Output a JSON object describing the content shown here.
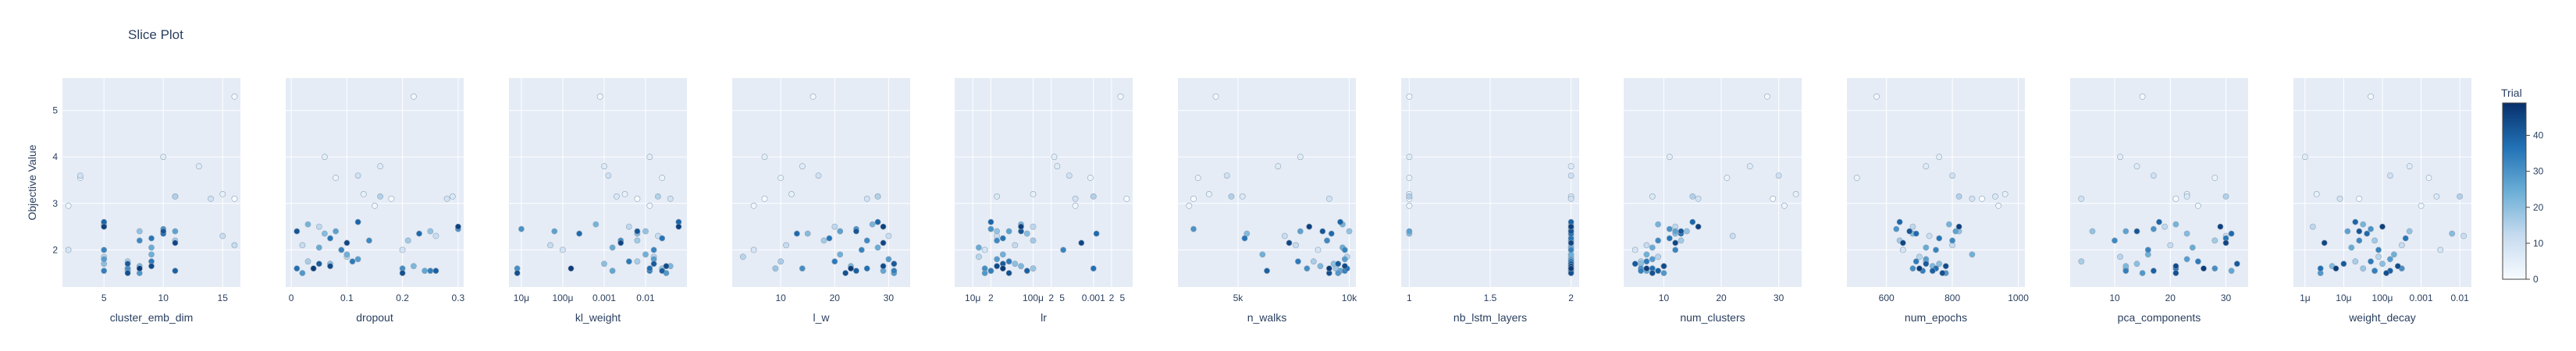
{
  "chart_data": {
    "type": "scatter",
    "title": "Slice Plot",
    "ylabel": "Objective Value",
    "ylim": [
      1.2,
      5.7
    ],
    "y_ticks": [
      2,
      3,
      4,
      5
    ],
    "grid": true,
    "colorbar": {
      "title": "Trial",
      "range": [
        0,
        49
      ],
      "ticks": [
        0,
        10,
        20,
        30,
        40
      ],
      "colors": [
        "#f7fbff",
        "#c6dbef",
        "#6baed6",
        "#2171b5",
        "#08306b"
      ]
    },
    "objective_by_trial": [
      3.1,
      5.3,
      2.95,
      3.55,
      3.2,
      4.0,
      3.8,
      3.15,
      2.0,
      3.1,
      3.6,
      2.3,
      2.1,
      2.5,
      1.85,
      3.15,
      1.75,
      2.2,
      1.6,
      2.4,
      1.7,
      2.35,
      1.65,
      2.55,
      1.9,
      2.05,
      1.55,
      2.4,
      1.8,
      1.5,
      2.45,
      1.6,
      2.2,
      2.0,
      1.55,
      1.75,
      2.25,
      1.6,
      2.35,
      2.6,
      1.55,
      1.7,
      2.4,
      1.5,
      1.65,
      2.15,
      2.5,
      1.6
    ],
    "panels": [
      {
        "param": "cluster_emb_dim",
        "xlabel": "cluster_emb_dim",
        "scale": "linear",
        "range": [
          1.5,
          16.5
        ],
        "tick_values": [
          5,
          10,
          15
        ],
        "tick_labels": [
          "5",
          "10",
          "15"
        ],
        "x": [
          16,
          16,
          2,
          3,
          15,
          10,
          13,
          11,
          2,
          14,
          3,
          15,
          16,
          5,
          5,
          11,
          7,
          11,
          7,
          8,
          5,
          10,
          8,
          5,
          9,
          9,
          7,
          11,
          5,
          8,
          10,
          7,
          8,
          5,
          5,
          9,
          9,
          8,
          10,
          5,
          11,
          7,
          10,
          7,
          9,
          11,
          5,
          8
        ]
      },
      {
        "param": "dropout",
        "xlabel": "dropout",
        "scale": "linear",
        "range": [
          -0.01,
          0.31
        ],
        "tick_values": [
          0,
          0.1,
          0.2,
          0.3
        ],
        "tick_labels": [
          "0",
          "0.1",
          "0.2",
          "0.3"
        ],
        "x": [
          0.18,
          0.22,
          0.15,
          0.08,
          0.13,
          0.06,
          0.16,
          0.29,
          0.2,
          0.28,
          0.12,
          0.26,
          0.02,
          0.05,
          0.1,
          0.16,
          0.03,
          0.21,
          0.04,
          0.25,
          0.07,
          0.06,
          0.22,
          0.03,
          0.1,
          0.05,
          0.24,
          0.08,
          0.12,
          0.02,
          0.3,
          0.2,
          0.14,
          0.09,
          0.25,
          0.11,
          0.07,
          0.01,
          0.23,
          0.12,
          0.26,
          0.05,
          0.01,
          0.2,
          0.07,
          0.1,
          0.3,
          0.04
        ]
      },
      {
        "param": "kl_weight",
        "xlabel": "kl_weight",
        "scale": "log",
        "range": [
          -5.3,
          -1.0
        ],
        "tick_values": [
          -5,
          -4,
          -3,
          -2
        ],
        "tick_labels": [
          "10μ",
          "100μ",
          "0.001",
          "0.01"
        ],
        "x": [
          -2.2,
          -3.1,
          -1.9,
          -1.6,
          -2.5,
          -1.9,
          -3.0,
          -2.7,
          -4.0,
          -1.4,
          -2.9,
          -1.7,
          -4.3,
          -2.4,
          -1.8,
          -1.7,
          -2.2,
          -2.2,
          -1.6,
          -2.0,
          -3.0,
          -2.2,
          -1.4,
          -3.2,
          -2.0,
          -2.8,
          -2.8,
          -4.2,
          -1.8,
          -1.5,
          -5.0,
          -5.1,
          -2.6,
          -1.8,
          -1.9,
          -2.4,
          -1.6,
          -1.9,
          -3.6,
          -1.2,
          -1.6,
          -1.8,
          -2.2,
          -5.1,
          -1.5,
          -2.6,
          -1.2,
          -3.8
        ]
      },
      {
        "param": "l_w",
        "xlabel": "l_w",
        "scale": "linear",
        "range": [
          1,
          34
        ],
        "tick_values": [
          10,
          20,
          30
        ],
        "tick_labels": [
          "10",
          "20",
          "30"
        ],
        "x": [
          7,
          16,
          5,
          10,
          12,
          7,
          14,
          28,
          5,
          26,
          17,
          30,
          11,
          20,
          3,
          28,
          10,
          18,
          9,
          21,
          31,
          15,
          23,
          27,
          21,
          28,
          29,
          21,
          30,
          31,
          24,
          14,
          26,
          25,
          31,
          20,
          19,
          26,
          13,
          28,
          24,
          31,
          24,
          22,
          29,
          29,
          29,
          23
        ]
      },
      {
        "param": "lr",
        "xlabel": "lr",
        "scale": "log",
        "range": [
          -5.3,
          -2.35
        ],
        "tick_values": [
          -5,
          -4.7,
          -4,
          -3.7,
          -3,
          -2.7
        ],
        "tick_labels": [
          "10μ",
          "2",
          "100μ",
          "2",
          "0.001",
          "2"
        ],
        "minor_tick_values": [
          -3.52,
          -2.52
        ],
        "minor_tick_labels": [
          "5",
          "5"
        ],
        "x": [
          -2.45,
          -2.55,
          -3.3,
          -3.05,
          -4.0,
          -3.65,
          -3.6,
          -4.6,
          -4.8,
          -3.3,
          -3.4,
          -4.6,
          -4.3,
          -4.0,
          -4.9,
          -3.0,
          -4.4,
          -4.0,
          -4.0,
          -4.6,
          -4.3,
          -4.1,
          -4.2,
          -4.2,
          -4.5,
          -4.9,
          -4.7,
          -4.4,
          -4.6,
          -4.8,
          -4.7,
          -4.8,
          -4.6,
          -3.5,
          -4.7,
          -4.4,
          -4.5,
          -3.0,
          -2.95,
          -4.7,
          -4.1,
          -4.5,
          -4.2,
          -4.4,
          -4.6,
          -3.2,
          -4.2,
          -4.5
        ]
      },
      {
        "param": "n_walks",
        "xlabel": "n_walks",
        "scale": "linear",
        "range": [
          2300,
          10300
        ],
        "tick_values": [
          5000,
          10000
        ],
        "tick_labels": [
          "5k",
          "10k"
        ],
        "x": [
          3000,
          4000,
          2800,
          3200,
          3700,
          7800,
          6800,
          5200,
          8600,
          9100,
          4500,
          7100,
          7600,
          8200,
          9900,
          4700,
          8400,
          9000,
          9400,
          10000,
          9300,
          5400,
          8700,
          9700,
          6100,
          9700,
          9600,
          7800,
          9800,
          9500,
          3000,
          8100,
          9000,
          9800,
          9800,
          7700,
          5300,
          9900,
          9200,
          9600,
          6300,
          9500,
          8800,
          9100,
          9800,
          7300,
          8200,
          9100
        ]
      },
      {
        "param": "nb_lstm_layers",
        "xlabel": "nb_lstm_layers",
        "scale": "linear",
        "range": [
          0.95,
          2.05
        ],
        "tick_values": [
          1,
          1.5,
          2
        ],
        "tick_labels": [
          "1",
          "1.5",
          "2"
        ],
        "x": [
          1,
          1,
          1,
          1,
          1,
          1,
          2,
          2,
          2,
          2,
          2,
          2,
          2,
          2,
          2,
          1,
          2,
          2,
          2,
          2,
          2,
          1,
          2,
          2,
          2,
          2,
          2,
          1,
          2,
          2,
          2,
          2,
          2,
          2,
          2,
          2,
          2,
          2,
          2,
          2,
          2,
          2,
          2,
          2,
          2,
          2,
          2,
          2
        ]
      },
      {
        "param": "num_clusters",
        "xlabel": "num_clusters",
        "scale": "linear",
        "range": [
          3,
          34
        ],
        "tick_values": [
          10,
          20,
          30
        ],
        "tick_labels": [
          "10",
          "20",
          "30"
        ],
        "x": [
          29,
          28,
          31,
          21,
          33,
          11,
          25,
          8,
          5,
          16,
          30,
          22,
          7,
          12,
          9,
          15,
          6,
          13,
          8,
          14,
          6,
          12,
          10,
          9,
          7,
          8,
          7,
          12,
          8,
          10,
          11,
          6,
          9,
          12,
          6,
          7,
          11,
          8,
          13,
          15,
          9,
          5,
          13,
          8,
          10,
          12,
          16,
          7
        ]
      },
      {
        "param": "num_epochs",
        "xlabel": "num_epochs",
        "scale": "linear",
        "range": [
          480,
          1020
        ],
        "tick_values": [
          600,
          800,
          1000
        ],
        "tick_labels": [
          "600",
          "800",
          "1000"
        ],
        "x": [
          890,
          570,
          940,
          510,
          960,
          760,
          720,
          930,
          650,
          860,
          800,
          730,
          800,
          680,
          700,
          820,
          720,
          640,
          750,
          820,
          760,
          680,
          740,
          790,
          860,
          720,
          740,
          810,
          720,
          780,
          630,
          680,
          800,
          750,
          710,
          690,
          760,
          750,
          690,
          640,
          740,
          720,
          670,
          770,
          780,
          650,
          820,
          700
        ]
      },
      {
        "param": "pca_components",
        "xlabel": "pca_components",
        "scale": "linear",
        "range": [
          2,
          34
        ],
        "tick_values": [
          10,
          20,
          30
        ],
        "tick_labels": [
          "10",
          "20",
          "30"
        ],
        "x": [
          21,
          15,
          25,
          28,
          23,
          11,
          14,
          23,
          16,
          4,
          17,
          30,
          20,
          19,
          11,
          30,
          4,
          28,
          12,
          6,
          14,
          23,
          12,
          21,
          16,
          24,
          31,
          12,
          23,
          15,
          17,
          28,
          10,
          16,
          12,
          25,
          30,
          21,
          31,
          18,
          17,
          32,
          14,
          21,
          21,
          30,
          29,
          26
        ]
      },
      {
        "param": "weight_decay",
        "xlabel": "weight_decay",
        "scale": "log",
        "range": [
          -6.3,
          -1.7
        ],
        "tick_values": [
          -6,
          -5,
          -4,
          -3,
          -2
        ],
        "tick_labels": [
          "1μ",
          "10μ",
          "100μ",
          "0.001",
          "0.01"
        ],
        "x": [
          -4.6,
          -4.3,
          -3.0,
          -2.8,
          -5.7,
          -6.0,
          -3.3,
          -2.6,
          -2.5,
          -5.1,
          -3.8,
          -1.9,
          -3.5,
          -5.8,
          -4.1,
          -2.0,
          -4.7,
          -4.2,
          -4.5,
          -3.3,
          -4.0,
          -2.2,
          -5.3,
          -4.5,
          -3.7,
          -4.8,
          -4.2,
          -4.9,
          -3.8,
          -5.6,
          -4.3,
          -3.5,
          -4.6,
          -4.1,
          -4.2,
          -4.3,
          -3.4,
          -5.6,
          -4.4,
          -4.7,
          -3.8,
          -5.0,
          -4.6,
          -3.9,
          -3.6,
          -5.5,
          -4.0,
          -5.2
        ]
      }
    ]
  }
}
